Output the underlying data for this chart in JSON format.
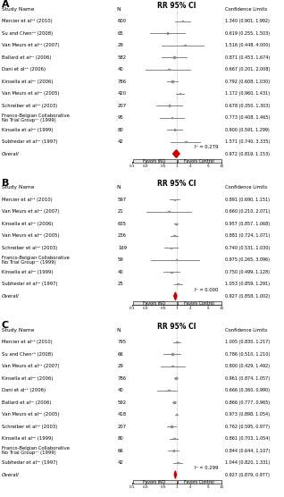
{
  "panel_A": {
    "title": "RR 95% CI",
    "studies": [
      {
        "name": "Mercier et al²⁵ (2010)",
        "n": "600",
        "rr": 1.34,
        "lo": 0.901,
        "hi": 1.992
      },
      {
        "name": "Su and Chen²⁶ (2008)",
        "n": "65",
        "rr": 0.619,
        "lo": 0.255,
        "hi": 1.503
      },
      {
        "name": "Van Meurs et al²⁴ (2007)",
        "n": "29",
        "rr": 1.516,
        "lo": 0.448,
        "hi": 4.0
      },
      {
        "name": "Ballard et al²¹ (2006)",
        "n": "582",
        "rr": 0.871,
        "lo": 0.453,
        "hi": 1.674
      },
      {
        "name": "Dani et al²³ (2006)",
        "n": "40",
        "rr": 0.667,
        "lo": 0.201,
        "hi": 2.008
      },
      {
        "name": "Kinsella et al²² (2006)",
        "n": "786",
        "rr": 0.792,
        "lo": 0.608,
        "hi": 1.03
      },
      {
        "name": "Van Meurs et al²⁰ (2005)",
        "n": "420",
        "rr": 1.172,
        "lo": 0.96,
        "hi": 1.431
      },
      {
        "name": "Schreiber et al²⁸ (2003)",
        "n": "207",
        "rr": 0.678,
        "lo": 0.35,
        "hi": 1.303
      },
      {
        "name": "Franco-Belgian Collaborative\nNo Trial Group¹⁷ (1999)",
        "n": "95",
        "rr": 0.773,
        "lo": 0.408,
        "hi": 1.465
      },
      {
        "name": "Kinsella et al²⁹ (1999)",
        "n": "80",
        "rr": 0.9,
        "lo": 0.591,
        "hi": 1.299
      },
      {
        "name": "Subhedar et al³⁰ (1997)",
        "n": "42",
        "rr": 1.571,
        "lo": 0.74,
        "hi": 3.335
      }
    ],
    "overall": {
      "rr": 0.972,
      "lo": 0.819,
      "hi": 1.153
    },
    "i2": "I² = 0.279"
  },
  "panel_B": {
    "title": "RR 95% CI",
    "studies": [
      {
        "name": "Mercier et al²⁵ (2010)",
        "n": "597",
        "rr": 0.891,
        "lo": 0.69,
        "hi": 1.151
      },
      {
        "name": "Van Meurs et al²⁴ (2007)",
        "n": "21",
        "rr": 0.66,
        "lo": 0.21,
        "hi": 2.071
      },
      {
        "name": "Kinsella et al²² (2006)",
        "n": "635",
        "rr": 0.957,
        "lo": 0.857,
        "hi": 1.068
      },
      {
        "name": "Van Meurs et al²⁰ (2005)",
        "n": "236",
        "rr": 0.881,
        "lo": 0.724,
        "hi": 1.071
      },
      {
        "name": "Schreiber et al²⁸ (2003)",
        "n": "169",
        "rr": 0.74,
        "lo": 0.531,
        "hi": 1.03
      },
      {
        "name": "Franco-Belgian Collaborative\nNo Trial Group¹⁷ (1999)",
        "n": "59",
        "rr": 0.975,
        "lo": 0.265,
        "hi": 3.096
      },
      {
        "name": "Kinsella et al²⁹ (1999)",
        "n": "40",
        "rr": 0.75,
        "lo": 0.499,
        "hi": 1.128
      },
      {
        "name": "Subhedar et al³⁰ (1997)",
        "n": "25",
        "rr": 1.053,
        "lo": 0.859,
        "hi": 1.291
      }
    ],
    "overall": {
      "rr": 0.927,
      "lo": 0.858,
      "hi": 1.002
    },
    "i2": "I² = 0.000"
  },
  "panel_C": {
    "title": "RR 95% CI",
    "studies": [
      {
        "name": "Mercier et al²⁵ (2010)",
        "n": "795",
        "rr": 1.005,
        "lo": 0.83,
        "hi": 1.217
      },
      {
        "name": "Su and Chen²⁶ (2008)",
        "n": "66",
        "rr": 0.786,
        "lo": 0.51,
        "hi": 1.21
      },
      {
        "name": "Van Meurs et al²⁴ (2007)",
        "n": "29",
        "rr": 0.8,
        "lo": 0.429,
        "hi": 1.492
      },
      {
        "name": "Kinsella et al²² (2006)",
        "n": "786",
        "rr": 0.961,
        "lo": 0.874,
        "hi": 1.057
      },
      {
        "name": "Dani et al²³ (2006)",
        "n": "40",
        "rr": 0.666,
        "lo": 0.36,
        "hi": 0.99
      },
      {
        "name": "Ballard et al²¹ (2006)",
        "n": "592",
        "rr": 0.866,
        "lo": 0.777,
        "hi": 0.965
      },
      {
        "name": "Van Meurs et al²⁰ (2005)",
        "n": "418",
        "rr": 0.973,
        "lo": 0.898,
        "hi": 1.054
      },
      {
        "name": "Schreiber et al²⁸ (2003)",
        "n": "207",
        "rr": 0.762,
        "lo": 0.595,
        "hi": 0.977
      },
      {
        "name": "Kinsella et al²⁹ (1999)",
        "n": "80",
        "rr": 0.861,
        "lo": 0.703,
        "hi": 1.054
      },
      {
        "name": "Franco-Belgian Collaborative\nNo Trial Group¹⁷ (1999)",
        "n": "66",
        "rr": 0.844,
        "lo": 0.644,
        "hi": 1.107
      },
      {
        "name": "Subhedar et al³⁰ (1997)",
        "n": "42",
        "rr": 1.044,
        "lo": 0.82,
        "hi": 1.331
      }
    ],
    "overall": {
      "rr": 0.927,
      "lo": 0.879,
      "hi": 0.977
    },
    "i2": "I² = 0.299"
  },
  "xmin": 0.1,
  "xmax": 10.0,
  "bg_color": "#ffffff",
  "diamond_color": "#cc0000",
  "ci_color": "#808080",
  "text_color": "#000000",
  "box_color": "#909090"
}
